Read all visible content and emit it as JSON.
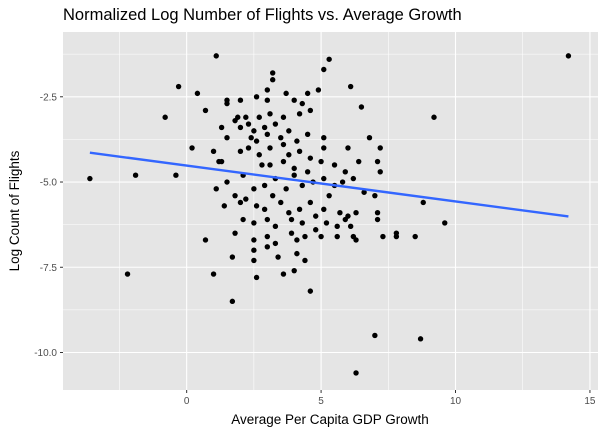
{
  "chart_data": {
    "type": "scatter",
    "title": "Normalized Log Number of Flights vs. Average Growth",
    "xlabel": "Average Per Capita GDP Growth",
    "ylabel": "Log Count of Flights",
    "xlim": [
      -4.6,
      15.3
    ],
    "ylim": [
      -11.1,
      -0.6
    ],
    "x_ticks": [
      0,
      5,
      10,
      15
    ],
    "y_ticks": [
      -2.5,
      -5.0,
      -7.5,
      -10.0
    ],
    "x_tick_labels": [
      "0",
      "5",
      "10",
      "15"
    ],
    "y_tick_labels": [
      "-2.5",
      "-5.0",
      "-7.5",
      "-10.0"
    ],
    "grid": true,
    "panel_background": "#e5e5e5",
    "grid_color": "#ffffff",
    "point_color": "#000000",
    "trend_color": "#3366ff",
    "trend_line": {
      "x": [
        -3.6,
        14.2
      ],
      "y": [
        -4.14,
        -6.01
      ]
    },
    "points": [
      [
        1.1,
        -1.3
      ],
      [
        3.2,
        -1.8
      ],
      [
        5.3,
        -1.4
      ],
      [
        5.1,
        -1.7
      ],
      [
        14.2,
        -1.3
      ],
      [
        -0.3,
        -2.2
      ],
      [
        0.4,
        -2.4
      ],
      [
        1.5,
        -2.6
      ],
      [
        1.5,
        -2.7
      ],
      [
        2.0,
        -2.6
      ],
      [
        2.6,
        -2.5
      ],
      [
        3.0,
        -2.6
      ],
      [
        3.0,
        -2.3
      ],
      [
        3.2,
        -2.0
      ],
      [
        3.7,
        -2.4
      ],
      [
        4.0,
        -2.6
      ],
      [
        4.5,
        -2.4
      ],
      [
        4.3,
        -2.7
      ],
      [
        4.9,
        -2.3
      ],
      [
        6.1,
        -2.2
      ],
      [
        6.5,
        -2.8
      ],
      [
        0.7,
        -2.9
      ],
      [
        -0.8,
        -3.1
      ],
      [
        1.8,
        -3.2
      ],
      [
        1.9,
        -3.1
      ],
      [
        2.2,
        -3.1
      ],
      [
        2.7,
        -3.1
      ],
      [
        3.1,
        -3.0
      ],
      [
        3.6,
        -3.1
      ],
      [
        4.2,
        -3.0
      ],
      [
        4.6,
        -2.9
      ],
      [
        9.2,
        -3.1
      ],
      [
        1.3,
        -3.4
      ],
      [
        2.0,
        -3.4
      ],
      [
        2.3,
        -3.3
      ],
      [
        2.5,
        -3.5
      ],
      [
        2.9,
        -3.4
      ],
      [
        3.3,
        -3.3
      ],
      [
        3.8,
        -3.5
      ],
      [
        1.5,
        -3.7
      ],
      [
        2.4,
        -3.7
      ],
      [
        2.6,
        -3.8
      ],
      [
        3.0,
        -3.6
      ],
      [
        3.5,
        -3.7
      ],
      [
        4.1,
        -3.8
      ],
      [
        4.5,
        -3.6
      ],
      [
        5.1,
        -3.7
      ],
      [
        6.8,
        -3.7
      ],
      [
        0.2,
        -4.0
      ],
      [
        1.0,
        -4.1
      ],
      [
        1.2,
        -4.4
      ],
      [
        1.3,
        -4.4
      ],
      [
        2.0,
        -4.1
      ],
      [
        2.3,
        -4.0
      ],
      [
        2.7,
        -4.2
      ],
      [
        3.1,
        -4.0
      ],
      [
        3.6,
        -3.9
      ],
      [
        3.8,
        -4.2
      ],
      [
        4.2,
        -4.1
      ],
      [
        4.6,
        -4.3
      ],
      [
        5.1,
        -4.0
      ],
      [
        6.0,
        -4.0
      ],
      [
        7.2,
        -4.0
      ],
      [
        2.8,
        -4.5
      ],
      [
        3.1,
        -4.5
      ],
      [
        3.6,
        -4.4
      ],
      [
        4.0,
        -4.6
      ],
      [
        4.5,
        -4.7
      ],
      [
        5.0,
        -4.4
      ],
      [
        5.5,
        -4.5
      ],
      [
        5.9,
        -4.7
      ],
      [
        6.4,
        -4.4
      ],
      [
        7.1,
        -4.4
      ],
      [
        7.2,
        -4.7
      ],
      [
        -3.6,
        -4.9
      ],
      [
        -1.9,
        -4.8
      ],
      [
        -0.4,
        -4.8
      ],
      [
        1.1,
        -5.2
      ],
      [
        1.5,
        -5.0
      ],
      [
        2.1,
        -4.8
      ],
      [
        2.5,
        -5.2
      ],
      [
        2.9,
        -5.1
      ],
      [
        3.3,
        -4.9
      ],
      [
        3.7,
        -5.2
      ],
      [
        4.0,
        -4.8
      ],
      [
        4.3,
        -5.1
      ],
      [
        4.7,
        -5.0
      ],
      [
        5.1,
        -4.9
      ],
      [
        5.5,
        -5.1
      ],
      [
        5.8,
        -5.0
      ],
      [
        6.2,
        -4.9
      ],
      [
        6.6,
        -5.3
      ],
      [
        7.0,
        -5.4
      ],
      [
        1.4,
        -5.7
      ],
      [
        1.8,
        -5.4
      ],
      [
        2.0,
        -5.6
      ],
      [
        2.2,
        -5.5
      ],
      [
        2.6,
        -5.7
      ],
      [
        2.9,
        -5.8
      ],
      [
        3.2,
        -5.4
      ],
      [
        3.5,
        -5.6
      ],
      [
        3.8,
        -5.9
      ],
      [
        4.2,
        -5.8
      ],
      [
        4.6,
        -5.6
      ],
      [
        5.1,
        -5.8
      ],
      [
        5.3,
        -5.4
      ],
      [
        5.7,
        -5.9
      ],
      [
        6.0,
        -6.0
      ],
      [
        6.3,
        -5.9
      ],
      [
        7.1,
        -5.9
      ],
      [
        8.8,
        -5.6
      ],
      [
        2.1,
        -6.1
      ],
      [
        2.5,
        -6.2
      ],
      [
        3.0,
        -6.1
      ],
      [
        3.3,
        -6.3
      ],
      [
        3.9,
        -6.1
      ],
      [
        4.3,
        -6.2
      ],
      [
        4.8,
        -6.0
      ],
      [
        5.2,
        -6.2
      ],
      [
        5.6,
        -6.3
      ],
      [
        5.9,
        -6.1
      ],
      [
        6.1,
        -6.3
      ],
      [
        7.1,
        -6.1
      ],
      [
        9.6,
        -6.2
      ],
      [
        0.7,
        -6.7
      ],
      [
        1.8,
        -6.5
      ],
      [
        2.5,
        -6.7
      ],
      [
        3.0,
        -6.6
      ],
      [
        3.3,
        -6.8
      ],
      [
        3.9,
        -6.5
      ],
      [
        4.1,
        -6.7
      ],
      [
        4.4,
        -6.6
      ],
      [
        4.8,
        -6.4
      ],
      [
        5.0,
        -6.6
      ],
      [
        5.6,
        -6.6
      ],
      [
        6.2,
        -6.6
      ],
      [
        6.3,
        -6.7
      ],
      [
        7.3,
        -6.6
      ],
      [
        7.8,
        -6.5
      ],
      [
        7.8,
        -6.6
      ],
      [
        8.5,
        -6.6
      ],
      [
        2.5,
        -7.0
      ],
      [
        3.0,
        -6.9
      ],
      [
        4.1,
        -7.1
      ],
      [
        1.7,
        -7.2
      ],
      [
        2.5,
        -7.3
      ],
      [
        3.4,
        -7.2
      ],
      [
        4.4,
        -7.3
      ],
      [
        -2.2,
        -7.7
      ],
      [
        1.0,
        -7.7
      ],
      [
        2.6,
        -7.8
      ],
      [
        3.6,
        -7.7
      ],
      [
        4.0,
        -7.6
      ],
      [
        4.6,
        -8.2
      ],
      [
        1.7,
        -8.5
      ],
      [
        7.0,
        -9.5
      ],
      [
        8.7,
        -9.6
      ],
      [
        6.3,
        -10.6
      ]
    ]
  }
}
